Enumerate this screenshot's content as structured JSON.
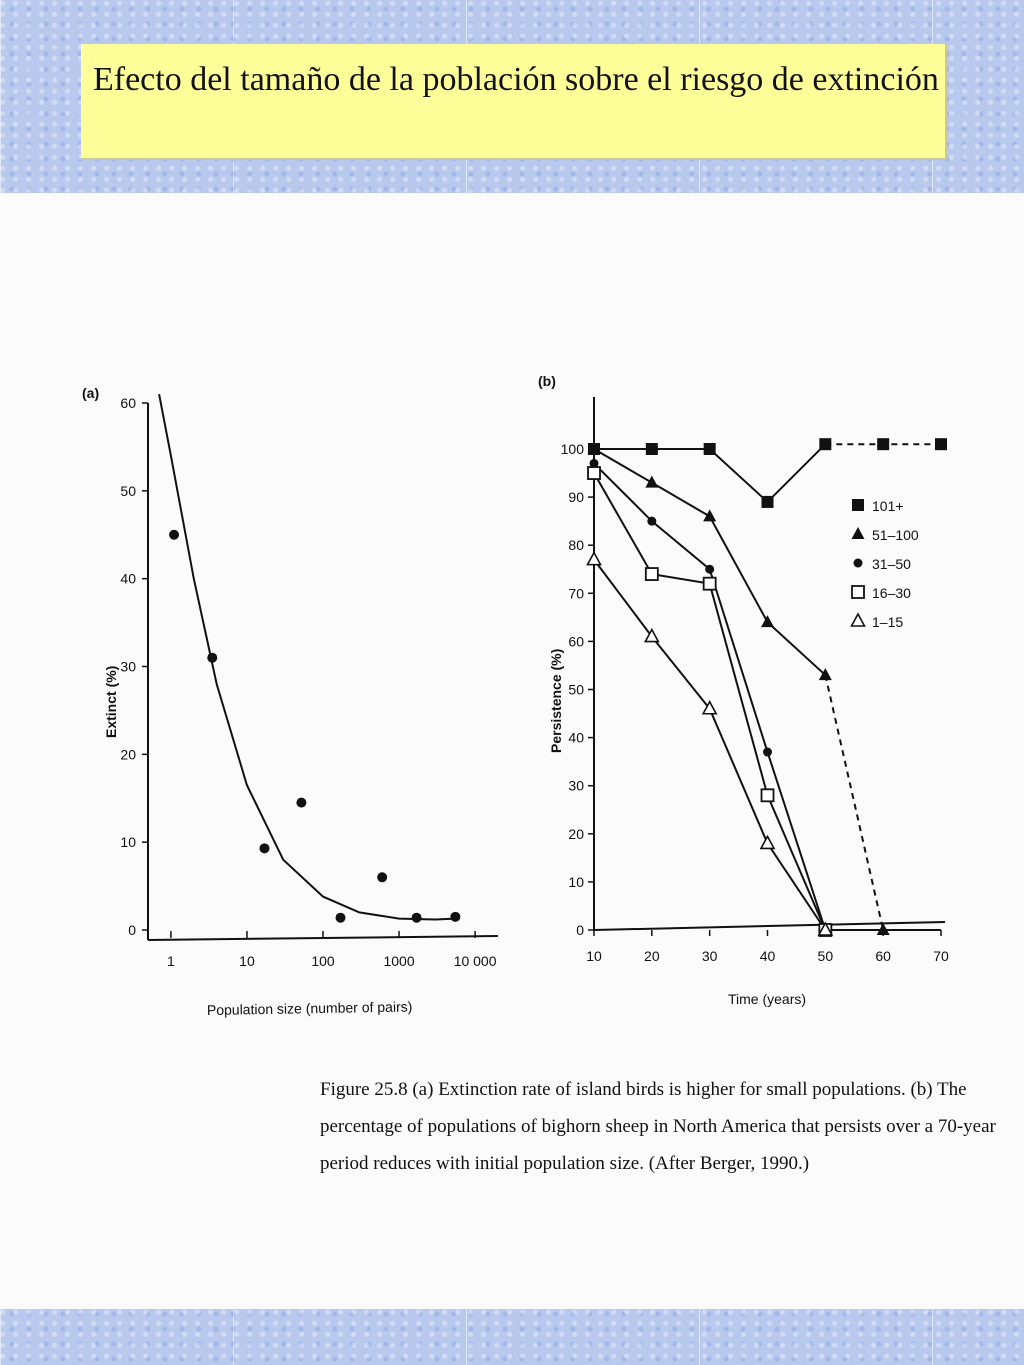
{
  "title": "Efecto del tamaño de la población sobre el riesgo de extinción",
  "colors": {
    "background": "#b9c9ee",
    "title_box": "#ffff99",
    "ink": "#111111"
  },
  "chart_data": [
    {
      "type": "scatter",
      "panel_label": "(a)",
      "xlabel": "Population size (number of pairs)",
      "ylabel": "Extinct (%)",
      "xscale": "log",
      "xlim": [
        0.5,
        20000
      ],
      "ylim": [
        0,
        60
      ],
      "xticks": [
        1,
        10,
        100,
        1000,
        10000
      ],
      "xtick_labels": [
        "1",
        "10",
        "100",
        "1000",
        "10 000"
      ],
      "yticks": [
        0,
        10,
        20,
        30,
        40,
        50,
        60
      ],
      "points": [
        {
          "x": 1.1,
          "y": 45
        },
        {
          "x": 3.5,
          "y": 31
        },
        {
          "x": 17,
          "y": 9.3
        },
        {
          "x": 52,
          "y": 14.5
        },
        {
          "x": 170,
          "y": 1.4
        },
        {
          "x": 600,
          "y": 6
        },
        {
          "x": 1700,
          "y": 1.4
        },
        {
          "x": 5500,
          "y": 1.5
        }
      ],
      "fit_curve": [
        {
          "x": 0.7,
          "y": 61
        },
        {
          "x": 1,
          "y": 54
        },
        {
          "x": 2,
          "y": 40
        },
        {
          "x": 4,
          "y": 28
        },
        {
          "x": 10,
          "y": 16.5
        },
        {
          "x": 30,
          "y": 8
        },
        {
          "x": 100,
          "y": 3.8
        },
        {
          "x": 300,
          "y": 2
        },
        {
          "x": 1000,
          "y": 1.3
        },
        {
          "x": 3000,
          "y": 1.2
        },
        {
          "x": 5500,
          "y": 1.3
        }
      ]
    },
    {
      "type": "line",
      "panel_label": "(b)",
      "xlabel": "Time (years)",
      "ylabel": "Persistence (%)",
      "xlim": [
        10,
        70
      ],
      "ylim": [
        0,
        100
      ],
      "xticks": [
        10,
        20,
        30,
        40,
        50,
        60,
        70
      ],
      "yticks": [
        0,
        10,
        20,
        30,
        40,
        50,
        60,
        70,
        80,
        90,
        100
      ],
      "legend_position": "right",
      "series": [
        {
          "name": "101+",
          "marker": "filled-square",
          "points": [
            {
              "x": 10,
              "y": 100
            },
            {
              "x": 20,
              "y": 100
            },
            {
              "x": 30,
              "y": 100
            },
            {
              "x": 40,
              "y": 89
            },
            {
              "x": 50,
              "y": 101
            }
          ],
          "dashed_points": [
            {
              "x": 50,
              "y": 101
            },
            {
              "x": 60,
              "y": 101
            },
            {
              "x": 70,
              "y": 101
            }
          ]
        },
        {
          "name": "51–100",
          "marker": "filled-triangle",
          "points": [
            {
              "x": 10,
              "y": 100
            },
            {
              "x": 20,
              "y": 93
            },
            {
              "x": 30,
              "y": 86
            },
            {
              "x": 40,
              "y": 64
            },
            {
              "x": 50,
              "y": 53
            }
          ],
          "dashed_points": [
            {
              "x": 50,
              "y": 53
            },
            {
              "x": 60,
              "y": 0
            }
          ]
        },
        {
          "name": "31–50",
          "marker": "filled-circle",
          "points": [
            {
              "x": 10,
              "y": 97
            },
            {
              "x": 20,
              "y": 85
            },
            {
              "x": 30,
              "y": 75
            },
            {
              "x": 40,
              "y": 37
            },
            {
              "x": 50,
              "y": 0
            }
          ]
        },
        {
          "name": "16–30",
          "marker": "open-square",
          "points": [
            {
              "x": 10,
              "y": 95
            },
            {
              "x": 20,
              "y": 74
            },
            {
              "x": 30,
              "y": 72
            },
            {
              "x": 40,
              "y": 28
            },
            {
              "x": 50,
              "y": 0
            }
          ]
        },
        {
          "name": "1–15",
          "marker": "open-triangle",
          "points": [
            {
              "x": 10,
              "y": 77
            },
            {
              "x": 20,
              "y": 61
            },
            {
              "x": 30,
              "y": 46
            },
            {
              "x": 40,
              "y": 18
            },
            {
              "x": 50,
              "y": 0
            }
          ]
        }
      ],
      "baseline_points": [
        {
          "x": 50,
          "y": 0
        },
        {
          "x": 60,
          "y": 0
        },
        {
          "x": 70,
          "y": 0
        }
      ]
    }
  ],
  "caption": {
    "lines": [
      "Figure 25.8  (a) Extinction rate of island birds is higher for small populations. (b) The",
      "percentage of populations of bighorn sheep in North America that persists over a 70-year",
      "period reduces with initial population size. (After Berger, 1990.)"
    ]
  }
}
